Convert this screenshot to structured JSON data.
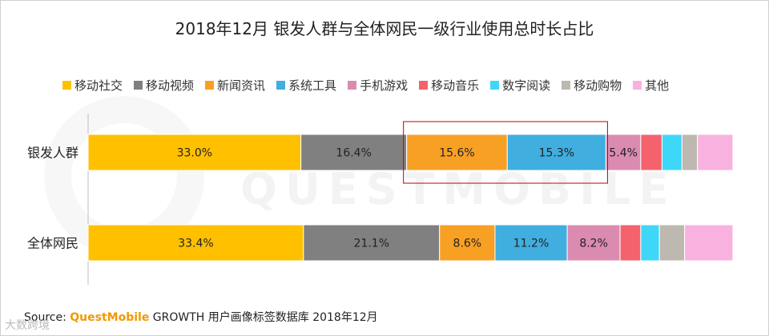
{
  "title": "2018年12月 银发人群与全体网民一级行业使用总时长占比",
  "source": {
    "label": "Source: ",
    "brand": "QuestMobile",
    "text": " GROWTH 用户画像标签数据库 2018年12月"
  },
  "watermark_text": "QUESTMOBILE",
  "corner_watermark": "大数跨境",
  "chart_data": {
    "type": "bar",
    "orientation": "horizontal",
    "stacked": true,
    "normalized_percent": true,
    "categories": [
      "银发人群",
      "全体网民"
    ],
    "series": [
      {
        "name": "移动社交",
        "color": "#FFC000",
        "values": [
          33.0,
          33.4
        ],
        "labels": [
          "33.0%",
          "33.4%"
        ]
      },
      {
        "name": "移动视频",
        "color": "#808080",
        "values": [
          16.4,
          21.1
        ],
        "labels": [
          "16.4%",
          "21.1%"
        ]
      },
      {
        "name": "新闻资讯",
        "color": "#F8A024",
        "values": [
          15.6,
          8.6
        ],
        "labels": [
          "15.6%",
          "8.6%"
        ]
      },
      {
        "name": "系统工具",
        "color": "#40AEDF",
        "values": [
          15.3,
          11.2
        ],
        "labels": [
          "15.3%",
          "11.2%"
        ]
      },
      {
        "name": "手机游戏",
        "color": "#DB8BB0",
        "values": [
          5.4,
          8.2
        ],
        "labels": [
          "5.4%",
          "8.2%"
        ]
      },
      {
        "name": "移动音乐",
        "color": "#F4626D",
        "values": [
          3.3,
          3.2
        ],
        "labels": [
          "",
          ""
        ]
      },
      {
        "name": "数字阅读",
        "color": "#3FD7F8",
        "values": [
          3.1,
          2.9
        ],
        "labels": [
          "",
          ""
        ]
      },
      {
        "name": "移动购物",
        "color": "#BDB8B0",
        "values": [
          2.4,
          3.9
        ],
        "labels": [
          "",
          ""
        ]
      },
      {
        "name": "其他",
        "color": "#F9B2DF",
        "values": [
          5.5,
          7.5
        ],
        "labels": [
          "",
          ""
        ]
      }
    ],
    "xlim": [
      0,
      100
    ],
    "legend_position": "top",
    "grid": false,
    "highlight": {
      "row": 0,
      "series_from": 2,
      "series_to": 3,
      "color": "#C00000"
    }
  }
}
